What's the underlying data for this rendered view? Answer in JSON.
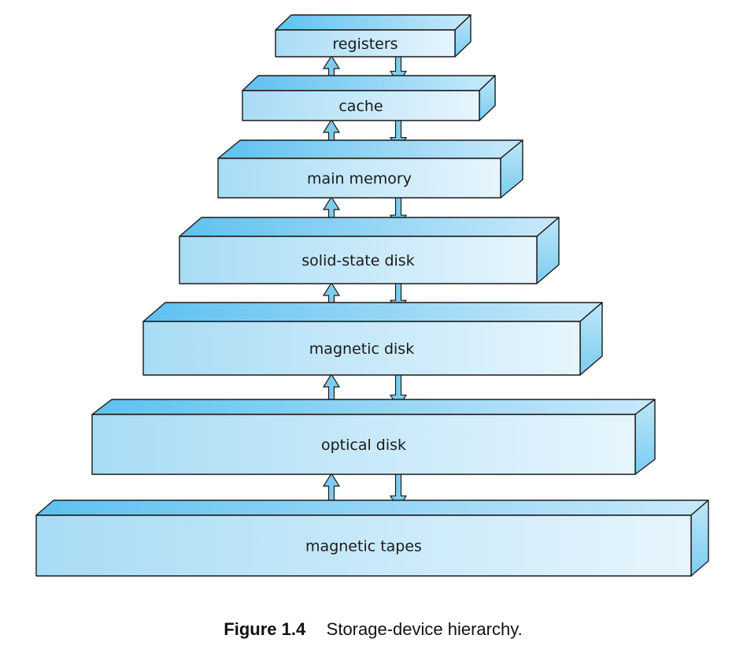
{
  "diagram": {
    "levels": [
      {
        "label": "registers"
      },
      {
        "label": "cache"
      },
      {
        "label": "main memory"
      },
      {
        "label": "solid-state disk"
      },
      {
        "label": "magnetic disk"
      },
      {
        "label": "optical disk"
      },
      {
        "label": "magnetic tapes"
      }
    ],
    "colors": {
      "front_left": "#a8dcf5",
      "front_right": "#e6f5fd",
      "top_left": "#5ec1f0",
      "top_right": "#c8e9fa",
      "side_top": "#bfe6f8",
      "side_bottom": "#79cdf0",
      "arrow_fill": "#7fcbf0",
      "outline": "#1a1a1a"
    }
  },
  "caption": {
    "number": "Figure 1.4",
    "text": "Storage-device hierarchy."
  }
}
